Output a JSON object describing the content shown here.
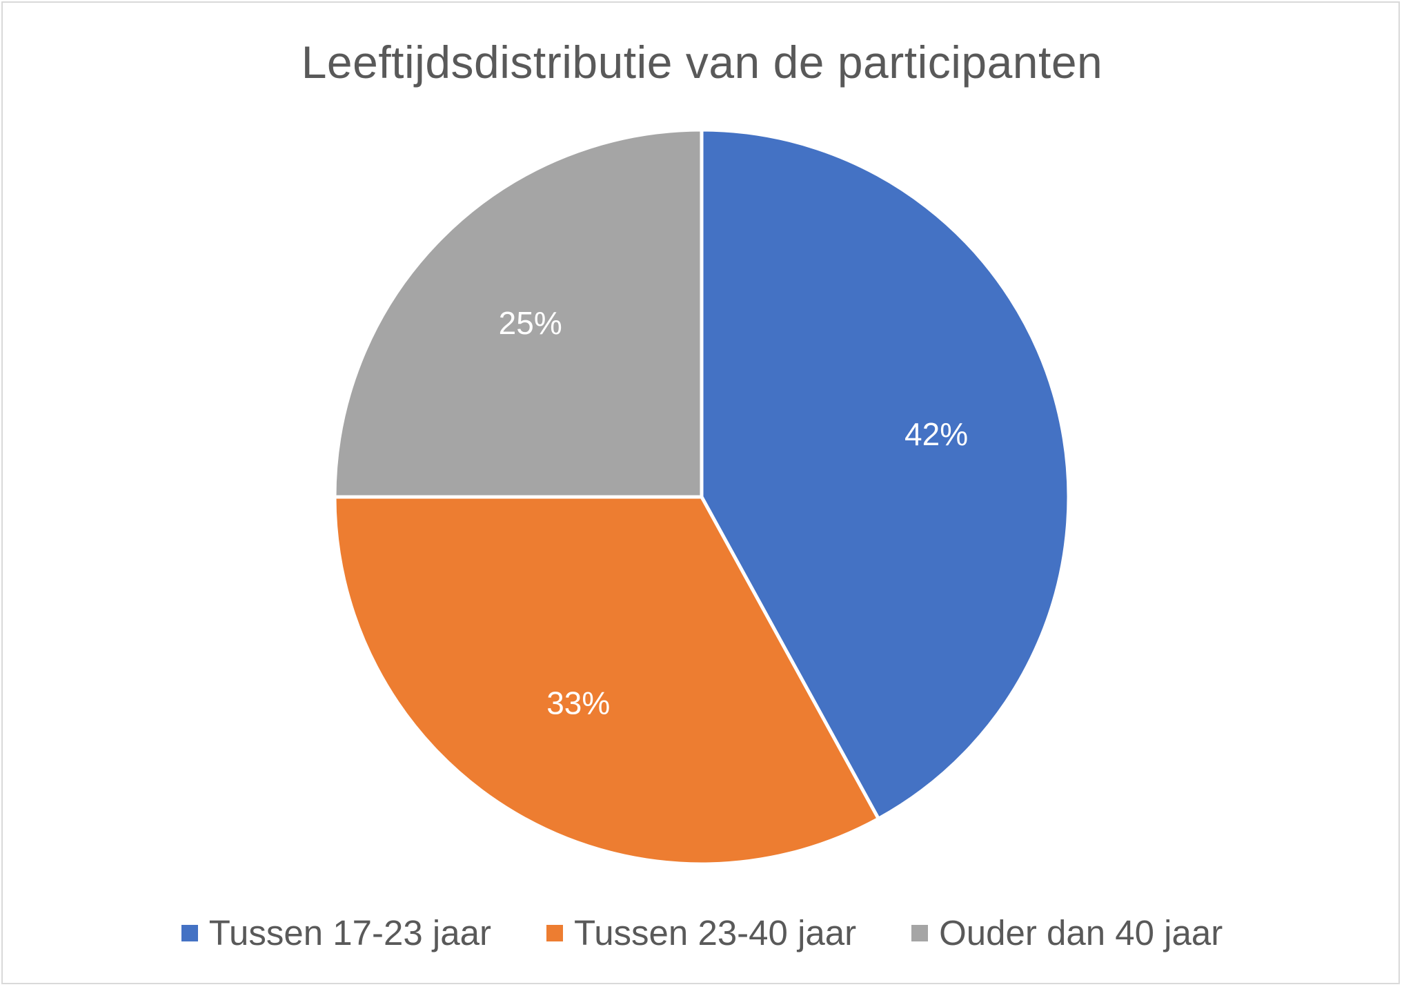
{
  "chart_data": {
    "type": "pie",
    "title": "Leeftijdsdistributie van de participanten",
    "slices": [
      {
        "label": "Tussen 17-23 jaar",
        "value": 42,
        "display": "42%",
        "color": "#4472C4"
      },
      {
        "label": "Tussen 23-40 jaar",
        "value": 33,
        "display": "33%",
        "color": "#ED7D31"
      },
      {
        "label": "Ouder dan 40 jaar",
        "value": 25,
        "display": "25%",
        "color": "#A5A5A5"
      }
    ],
    "start_angle": "12 o'clock",
    "direction": "clockwise",
    "legend_position": "bottom"
  }
}
